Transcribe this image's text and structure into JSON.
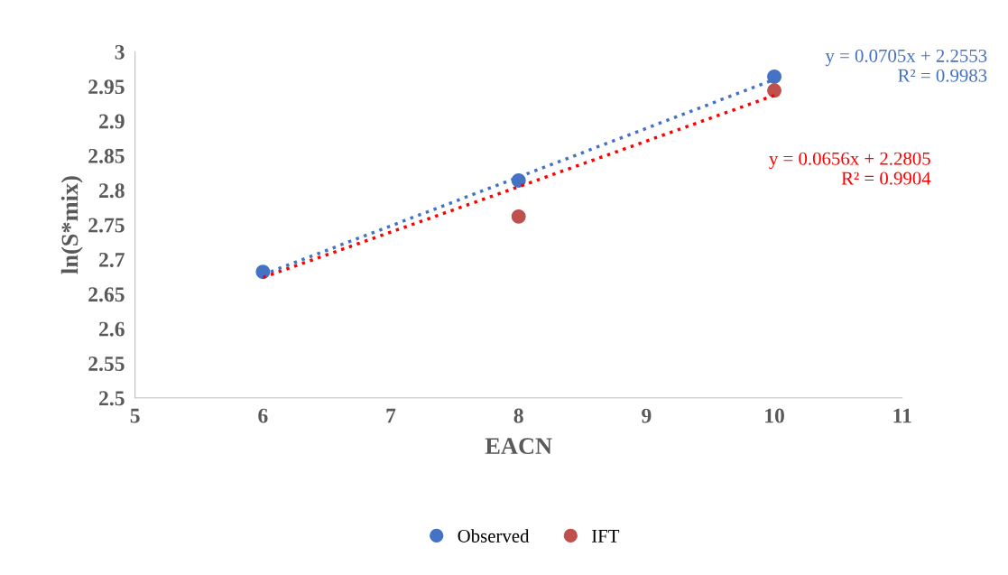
{
  "chart_data": {
    "type": "scatter",
    "xlabel": "EACN",
    "ylabel": "ln(S*mix)",
    "x": [
      6,
      8,
      10
    ],
    "series": [
      {
        "name": "Observed",
        "color": "#4472c4",
        "values": [
          2.682,
          2.814,
          2.964
        ]
      },
      {
        "name": "IFT",
        "color": "#c0504d",
        "values": [
          null,
          2.762,
          2.944
        ]
      },
      {
        "type": "line",
        "color": "#4472c4",
        "values": [
          2.678,
          2.819,
          2.96
        ],
        "line_style": "dotted",
        "marker": "none"
      },
      {
        "type": "line",
        "color": "#ff0000",
        "values": [
          2.674,
          2.805,
          2.937
        ],
        "line_style": "dotted",
        "marker": "none"
      }
    ],
    "annotations": [
      "y = 0.0705x + 2.2553\nR² = 0.9983",
      "y = 0.0656x + 2.2805\nR² = 0.9904"
    ],
    "xlim": [
      5,
      11
    ],
    "xticks": [
      5,
      6,
      7,
      8,
      9,
      10,
      11
    ],
    "ylim": [
      2.5,
      3
    ],
    "yticks": [
      2.5,
      2.55,
      2.6,
      2.65,
      2.7,
      2.75,
      2.8,
      2.85,
      2.9,
      2.95,
      3
    ],
    "marker": "circle",
    "grid": false,
    "legend": "bottom"
  }
}
